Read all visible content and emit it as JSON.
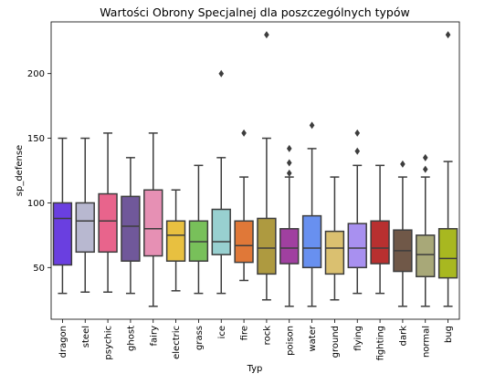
{
  "chart_data": {
    "type": "box",
    "title": "Wartości Obrony Specjalnej dla poszczególnych typów",
    "xlabel": "Typ",
    "ylabel": "sp_defense",
    "ylim": [
      10,
      240
    ],
    "yticks": [
      50,
      100,
      150,
      200
    ],
    "grid": false,
    "categories": [
      "dragon",
      "steel",
      "psychic",
      "ghost",
      "fairy",
      "electric",
      "grass",
      "ice",
      "fire",
      "rock",
      "poison",
      "water",
      "ground",
      "flying",
      "fighting",
      "dark",
      "normal",
      "bug"
    ],
    "colors": [
      "#6a3fe0",
      "#b8b8d0",
      "#e8648c",
      "#70589a",
      "#e690b4",
      "#e8c040",
      "#78c05a",
      "#98d0d0",
      "#e07838",
      "#ae9a40",
      "#a040a0",
      "#6890f0",
      "#dac070",
      "#a890f0",
      "#b83030",
      "#705848",
      "#a8a878",
      "#a8b820"
    ],
    "boxes": [
      {
        "whisker_low": 30,
        "q1": 52,
        "median": 88,
        "q3": 100,
        "whisker_high": 150,
        "outliers": []
      },
      {
        "whisker_low": 31,
        "q1": 62,
        "median": 86,
        "q3": 100,
        "whisker_high": 150,
        "outliers": []
      },
      {
        "whisker_low": 31,
        "q1": 62,
        "median": 86,
        "q3": 107,
        "whisker_high": 154,
        "outliers": []
      },
      {
        "whisker_low": 30,
        "q1": 55,
        "median": 82,
        "q3": 105,
        "whisker_high": 135,
        "outliers": []
      },
      {
        "whisker_low": 20,
        "q1": 59,
        "median": 80,
        "q3": 110,
        "whisker_high": 154,
        "outliers": []
      },
      {
        "whisker_low": 32,
        "q1": 55,
        "median": 75,
        "q3": 86,
        "whisker_high": 110,
        "outliers": []
      },
      {
        "whisker_low": 30,
        "q1": 55,
        "median": 70,
        "q3": 86,
        "whisker_high": 129,
        "outliers": []
      },
      {
        "whisker_low": 30,
        "q1": 60,
        "median": 70,
        "q3": 95,
        "whisker_high": 135,
        "outliers": [
          200
        ]
      },
      {
        "whisker_low": 40,
        "q1": 54,
        "median": 67,
        "q3": 86,
        "whisker_high": 120,
        "outliers": [
          154
        ]
      },
      {
        "whisker_low": 25,
        "q1": 45,
        "median": 65,
        "q3": 88,
        "whisker_high": 150,
        "outliers": [
          230
        ]
      },
      {
        "whisker_low": 20,
        "q1": 53,
        "median": 65,
        "q3": 80,
        "whisker_high": 120,
        "outliers": [
          123,
          131,
          142
        ]
      },
      {
        "whisker_low": 20,
        "q1": 50,
        "median": 65,
        "q3": 90,
        "whisker_high": 142,
        "outliers": [
          160
        ]
      },
      {
        "whisker_low": 25,
        "q1": 45,
        "median": 65,
        "q3": 78,
        "whisker_high": 120,
        "outliers": []
      },
      {
        "whisker_low": 30,
        "q1": 50,
        "median": 65,
        "q3": 84,
        "whisker_high": 129,
        "outliers": [
          140,
          154
        ]
      },
      {
        "whisker_low": 30,
        "q1": 53,
        "median": 65,
        "q3": 86,
        "whisker_high": 129,
        "outliers": []
      },
      {
        "whisker_low": 20,
        "q1": 47,
        "median": 63,
        "q3": 79,
        "whisker_high": 120,
        "outliers": [
          130
        ]
      },
      {
        "whisker_low": 20,
        "q1": 43,
        "median": 60,
        "q3": 75,
        "whisker_high": 120,
        "outliers": [
          126,
          135
        ]
      },
      {
        "whisker_low": 20,
        "q1": 42,
        "median": 57,
        "q3": 80,
        "whisker_high": 132,
        "outliers": [
          230
        ]
      }
    ]
  }
}
